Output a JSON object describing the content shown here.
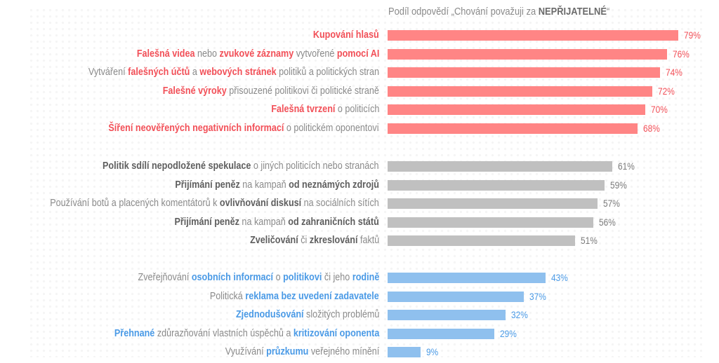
{
  "chart_data": {
    "type": "bar",
    "orientation": "horizontal",
    "title_prefix": "Podíl odpovědí „Chování považuji za ",
    "title_bold": "NEPŘIJATELNÉ",
    "title_suffix": "“",
    "xlim": [
      0,
      100
    ],
    "colors": {
      "red_bar": "#ff8585",
      "red_text": "#f25058",
      "grey_bar": "#c0c0c0",
      "grey_text": "#5e5e5e",
      "blue_bar": "#8fc0ee",
      "blue_text": "#4a9ae6",
      "plain_text": "#8a8a8a"
    },
    "groups": [
      {
        "name": "red",
        "items": [
          {
            "label": [
              {
                "t": "Kupování hlasů",
                "hl": true
              }
            ],
            "value": 79
          },
          {
            "label": [
              {
                "t": "Falešná videa",
                "hl": true
              },
              {
                "t": " nebo "
              },
              {
                "t": "zvukové záznamy",
                "hl": true
              },
              {
                "t": " vytvořené "
              },
              {
                "t": "pomocí AI",
                "hl": true
              }
            ],
            "value": 76
          },
          {
            "label": [
              {
                "t": "Vytváření "
              },
              {
                "t": "falešných účtů",
                "hl": true
              },
              {
                "t": " a "
              },
              {
                "t": "webových stránek",
                "hl": true
              },
              {
                "t": " politiků a politických stran"
              }
            ],
            "value": 74
          },
          {
            "label": [
              {
                "t": "Falešné výroky",
                "hl": true
              },
              {
                "t": " přisouzené politikovi či politické straně"
              }
            ],
            "value": 72
          },
          {
            "label": [
              {
                "t": "Falešná tvrzení",
                "hl": true
              },
              {
                "t": " o politicích"
              }
            ],
            "value": 70
          },
          {
            "label": [
              {
                "t": "Šíření neověřených negativních informací",
                "hl": true
              },
              {
                "t": " o politickém oponentovi"
              }
            ],
            "value": 68
          }
        ]
      },
      {
        "name": "grey",
        "items": [
          {
            "label": [
              {
                "t": "Politik sdílí nepodložené spekulace",
                "hl": true
              },
              {
                "t": " o jiných politicích nebo stranách"
              }
            ],
            "value": 61
          },
          {
            "label": [
              {
                "t": "Přijímání peněz",
                "hl": true
              },
              {
                "t": " na kampaň "
              },
              {
                "t": "od neznámých zdrojů",
                "hl": true
              }
            ],
            "value": 59
          },
          {
            "label": [
              {
                "t": "Používání botů a placených komentátorů k "
              },
              {
                "t": "ovlivňování diskusí",
                "hl": true
              },
              {
                "t": " na sociálních sítích"
              }
            ],
            "value": 57
          },
          {
            "label": [
              {
                "t": "Přijímání peněz",
                "hl": true
              },
              {
                "t": " na kampaň "
              },
              {
                "t": "od zahraničních států",
                "hl": true
              }
            ],
            "value": 56
          },
          {
            "label": [
              {
                "t": "Zveličování",
                "hl": true
              },
              {
                "t": " či "
              },
              {
                "t": "zkreslování",
                "hl": true
              },
              {
                "t": " faktů"
              }
            ],
            "value": 51
          }
        ]
      },
      {
        "name": "blue",
        "items": [
          {
            "label": [
              {
                "t": "Zveřejňování "
              },
              {
                "t": "osobních informací",
                "hl": true
              },
              {
                "t": " o "
              },
              {
                "t": "politikovi",
                "hl": true
              },
              {
                "t": " či jeho "
              },
              {
                "t": "rodině",
                "hl": true
              }
            ],
            "value": 43
          },
          {
            "label": [
              {
                "t": "Politická "
              },
              {
                "t": "reklama bez uvedení zadavatele",
                "hl": true
              }
            ],
            "value": 37
          },
          {
            "label": [
              {
                "t": "Zjednodušování",
                "hl": true
              },
              {
                "t": " složitých problémů"
              }
            ],
            "value": 32
          },
          {
            "label": [
              {
                "t": "Přehnané",
                "hl": true
              },
              {
                "t": " zdůrazňování vlastních úspěchů a "
              },
              {
                "t": "kritizování oponenta",
                "hl": true
              }
            ],
            "value": 29
          },
          {
            "label": [
              {
                "t": "Využívání "
              },
              {
                "t": "průzkumu",
                "hl": true
              },
              {
                "t": " veřejného mínění"
              }
            ],
            "value": 9
          }
        ]
      }
    ],
    "value_suffix": "%"
  }
}
